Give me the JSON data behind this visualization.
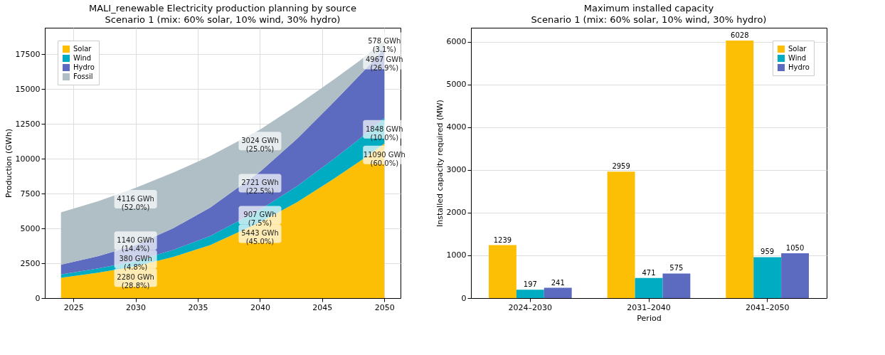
{
  "chart_data": [
    {
      "type": "area",
      "stacked": true,
      "title": "MALI_renewable Electricity production planning by source",
      "subtitle": "Scenario 1 (mix: 60% solar, 10% wind, 30% hydro)",
      "ylabel": "Production (GWh)",
      "x": [
        2024,
        2027,
        2030,
        2033,
        2036,
        2040,
        2043,
        2046,
        2048,
        2050
      ],
      "series": [
        {
          "name": "Solar",
          "color": "#fdbf06",
          "values": [
            1450,
            1820,
            2280,
            2950,
            3800,
            5443,
            6900,
            8600,
            9800,
            11090
          ],
          "value_labels": [
            null,
            null,
            "2280 GWh\n(28.8%)",
            null,
            null,
            "5443 GWh\n(45.0%)",
            null,
            null,
            null,
            "11090 GWh\n(60.0%)"
          ]
        },
        {
          "name": "Wind",
          "color": "#00acc1",
          "values": [
            250,
            310,
            380,
            500,
            650,
            907,
            1150,
            1430,
            1630,
            1848
          ],
          "value_labels": [
            null,
            null,
            "380 GWh\n(4.8%)",
            null,
            null,
            "907 GWh\n(7.5%)",
            null,
            null,
            null,
            "1848 GWh\n(10.0%)"
          ]
        },
        {
          "name": "Hydro",
          "color": "#5c6bc0",
          "values": [
            700,
            880,
            1140,
            1550,
            2050,
            2721,
            3400,
            4100,
            4550,
            4967
          ],
          "value_labels": [
            null,
            null,
            "1140 GWh\n(14.4%)",
            null,
            null,
            "2721 GWh\n(22.5%)",
            null,
            null,
            null,
            "4967 GWh\n(26.9%)"
          ]
        },
        {
          "name": "Fossil",
          "color": "#b0bec5",
          "values": [
            3750,
            3950,
            4116,
            4000,
            3700,
            3024,
            2400,
            1600,
            1050,
            578
          ],
          "value_labels": [
            null,
            null,
            "4116 GWh\n(52.0%)",
            null,
            null,
            "3024 GWh\n(25.0%)",
            null,
            null,
            null,
            "578 GWh\n(3.1%)"
          ]
        }
      ],
      "xlim": [
        2022.7,
        2051.3
      ],
      "xticks": [
        2025,
        2030,
        2035,
        2040,
        2045,
        2050
      ],
      "ylim": [
        0,
        19407
      ],
      "yticks": [
        0,
        2500,
        5000,
        7500,
        10000,
        12500,
        15000,
        17500
      ],
      "grid": true,
      "legend": "top left"
    },
    {
      "type": "bar",
      "title": "Maximum installed capacity",
      "subtitle": "Scenario 1 (mix: 60% solar, 10% wind, 30% hydro)",
      "xlabel": "Period",
      "ylabel": "Installed capacity required (MW)",
      "categories": [
        "2024–2030",
        "2031–2040",
        "2041–2050"
      ],
      "series": [
        {
          "name": "Solar",
          "color": "#fdbf06",
          "values": [
            1239,
            2959,
            6028
          ]
        },
        {
          "name": "Wind",
          "color": "#00acc1",
          "values": [
            197,
            471,
            959
          ]
        },
        {
          "name": "Hydro",
          "color": "#5c6bc0",
          "values": [
            241,
            575,
            1050
          ]
        }
      ],
      "ylim": [
        0,
        6329
      ],
      "yticks": [
        0,
        1000,
        2000,
        3000,
        4000,
        5000,
        6000
      ],
      "grid": "y",
      "legend": "top right",
      "data_labels": true
    }
  ]
}
